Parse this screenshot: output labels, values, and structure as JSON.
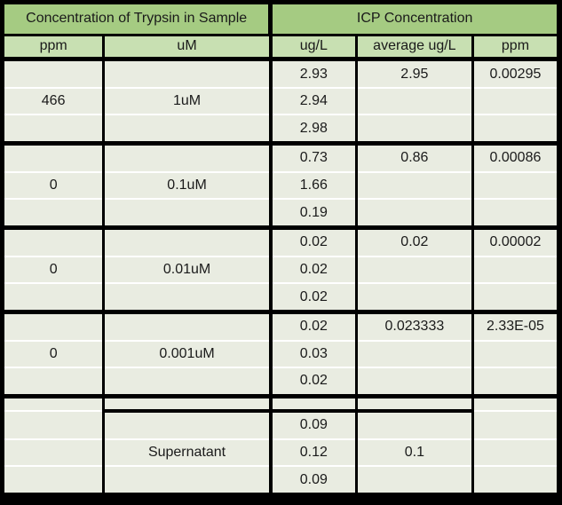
{
  "title_row": {
    "left": "Concentration of Trypsin in Sample",
    "right": "ICP Concentration"
  },
  "columns": [
    "ppm",
    "uM",
    "ug/L",
    "average ug/L",
    "ppm"
  ],
  "groups": [
    {
      "ppm": "466",
      "um": "1uM",
      "ug": [
        "2.93",
        "2.94",
        "2.98"
      ],
      "avg": "2.95",
      "ppm_icp": "0.00295"
    },
    {
      "ppm": "0",
      "um": "0.1uM",
      "ug": [
        "0.73",
        "1.66",
        "0.19"
      ],
      "avg": "0.86",
      "ppm_icp": "0.00086"
    },
    {
      "ppm": "0",
      "um": "0.01uM",
      "ug": [
        "0.02",
        "0.02",
        "0.02"
      ],
      "avg": "0.02",
      "ppm_icp": "0.00002"
    },
    {
      "ppm": "0",
      "um": "0.001uM",
      "ug": [
        "0.02",
        "0.03",
        "0.02"
      ],
      "avg": "0.023333",
      "ppm_icp": "2.33E-05"
    }
  ],
  "supernatant": {
    "label": "Supernatant",
    "ug": [
      "0.09",
      "0.12",
      "0.09"
    ],
    "avg": "0.1"
  },
  "colors": {
    "header_green": "#a5cb82",
    "subheader_green": "#c8e0b2",
    "cell_bg": "#e9ece1",
    "grid_black": "#000000",
    "separator_white": "#ffffff"
  }
}
